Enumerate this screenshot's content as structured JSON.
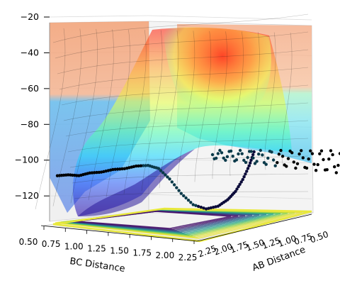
{
  "chart_data": {
    "type": "surface3d",
    "title": "",
    "xlabel": "BC Distance",
    "ylabel": "AB Distance",
    "zlabel": "",
    "xlim": [
      0.5,
      2.25
    ],
    "ylim": [
      0.5,
      2.25
    ],
    "zlim": [
      -135,
      -20
    ],
    "x_ticks": [
      "0.50",
      "0.75",
      "1.00",
      "1.25",
      "1.50",
      "1.75",
      "2.00",
      "2.25"
    ],
    "y_ticks": [
      "0.50",
      "0.75",
      "1.00",
      "1.25",
      "1.50",
      "1.75",
      "2.00",
      "2.25"
    ],
    "z_ticks": [
      "−20",
      "−40",
      "−60",
      "−80",
      "−100",
      "−120"
    ],
    "z_tick_values": [
      -20,
      -40,
      -60,
      -80,
      -100,
      -120
    ],
    "colormap": "jet",
    "surface_alpha": 0.5,
    "contour_projection_at_floor": true,
    "grid": true,
    "trajectory_series": [
      {
        "marker_color": "#000000",
        "points": [
          [
            2.0,
            0.85,
            -92
          ],
          [
            1.95,
            0.86,
            -100
          ],
          [
            1.88,
            0.87,
            -108
          ],
          [
            1.8,
            0.88,
            -115
          ],
          [
            1.72,
            0.9,
            -120
          ],
          [
            1.62,
            0.92,
            -124
          ],
          [
            1.5,
            0.95,
            -126
          ],
          [
            1.38,
            1.0,
            -124
          ],
          [
            1.28,
            1.06,
            -118
          ],
          [
            1.2,
            1.14,
            -110
          ],
          [
            1.14,
            1.24,
            -104
          ],
          [
            1.1,
            1.36,
            -102
          ],
          [
            1.06,
            1.5,
            -102
          ],
          [
            1.03,
            1.65,
            -103
          ],
          [
            1.0,
            1.8,
            -103
          ],
          [
            0.97,
            1.95,
            -104
          ],
          [
            0.94,
            2.1,
            -104
          ],
          [
            0.92,
            2.25,
            -105
          ],
          [
            0.9,
            2.4,
            -104
          ],
          [
            0.88,
            2.55,
            -104
          ]
        ]
      }
    ]
  }
}
